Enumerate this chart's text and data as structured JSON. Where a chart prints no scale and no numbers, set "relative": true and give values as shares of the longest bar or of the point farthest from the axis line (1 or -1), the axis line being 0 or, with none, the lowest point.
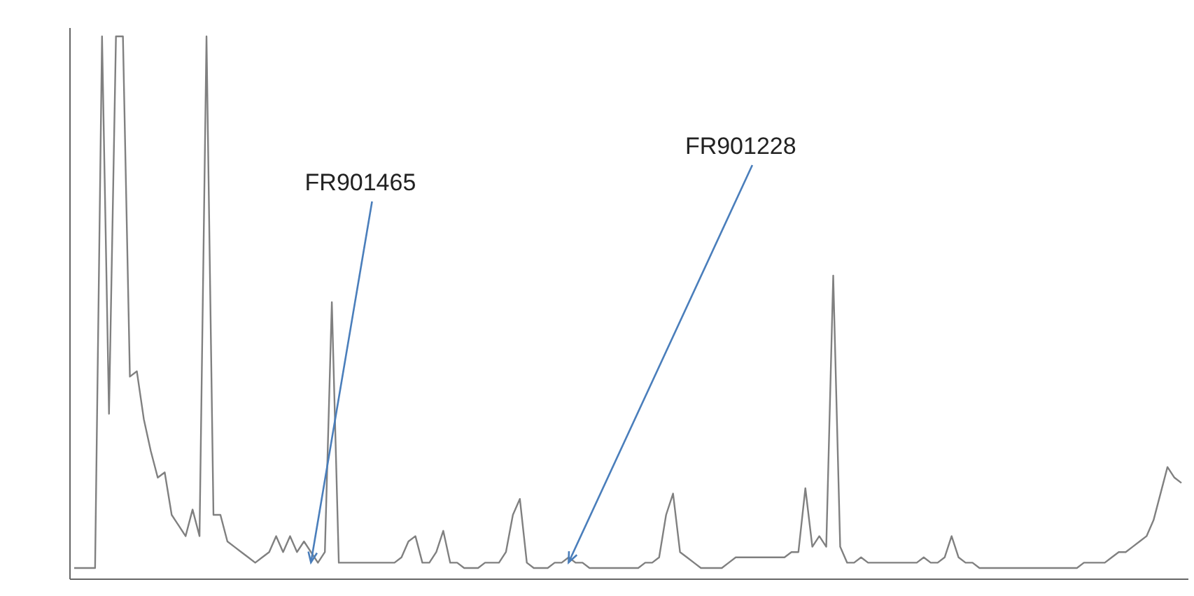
{
  "chart_data": {
    "type": "line",
    "relative": true,
    "categories": [
      null,
      null,
      null,
      null,
      null,
      null,
      null,
      null,
      null,
      null,
      null,
      null,
      null,
      null,
      null,
      null,
      null,
      null,
      null,
      null,
      null,
      null,
      null,
      null,
      null,
      null,
      null,
      null,
      null,
      null,
      null,
      null,
      null,
      null,
      null,
      null,
      null,
      null,
      null,
      null,
      null,
      null,
      null,
      null,
      null,
      null,
      null,
      null,
      null,
      null,
      null,
      null,
      null,
      null,
      null,
      null,
      null,
      null,
      null,
      null,
      null,
      null,
      null,
      null,
      null,
      null,
      null,
      null,
      null,
      null,
      null,
      null,
      null,
      null,
      null,
      null,
      null,
      null,
      null,
      null,
      null,
      null,
      null,
      null,
      null,
      null,
      null,
      null,
      null,
      null,
      null,
      null,
      null,
      null,
      null,
      null,
      null,
      null,
      null,
      null,
      null,
      null,
      null,
      null,
      null,
      null,
      null,
      null,
      null,
      null,
      null,
      null,
      null,
      null,
      null,
      null,
      null,
      null,
      null,
      null,
      null,
      null,
      null,
      null,
      null,
      null,
      null,
      null,
      null,
      null,
      null,
      null,
      null,
      null,
      null,
      null,
      null,
      null,
      null,
      null,
      null,
      null,
      null,
      null,
      null,
      null,
      null,
      null,
      null,
      null,
      null,
      null,
      null,
      null,
      null,
      null,
      null,
      null,
      null,
      null
    ],
    "series": [
      {
        "color": "#808080",
        "values": [
          0,
          0,
          0,
          0,
          1,
          0.29,
          1,
          1,
          0.36,
          0.37,
          0.28,
          0.22,
          0.17,
          0.18,
          0.1,
          0.08,
          0.06,
          0.11,
          0.06,
          1,
          0.1,
          0.1,
          0.05,
          0.04,
          0.03,
          0.02,
          0.01,
          0.02,
          0.03,
          0.06,
          0.03,
          0.06,
          0.03,
          0.05,
          0.03,
          0.01,
          0.03,
          0.5,
          0.01,
          0.01,
          0.01,
          0.01,
          0.01,
          0.01,
          0.01,
          0.01,
          0.01,
          0.02,
          0.05,
          0.06,
          0.01,
          0.01,
          0.03,
          0.07,
          0.01,
          0.01,
          0,
          0,
          0,
          0.01,
          0.01,
          0.01,
          0.03,
          0.1,
          0.13,
          0.01,
          0,
          0,
          0,
          0.01,
          0.01,
          0.02,
          0.01,
          0.01,
          0,
          0,
          0,
          0,
          0,
          0,
          0,
          0,
          0.01,
          0.01,
          0.02,
          0.1,
          0.14,
          0.03,
          0.02,
          0.01,
          0,
          0,
          0,
          0,
          0.01,
          0.02,
          0.02,
          0.02,
          0.02,
          0.02,
          0.02,
          0.02,
          0.02,
          0.03,
          0.03,
          0.15,
          0.04,
          0.06,
          0.04,
          0.55,
          0.04,
          0.01,
          0.01,
          0.02,
          0.01,
          0.01,
          0.01,
          0.01,
          0.01,
          0.01,
          0.01,
          0.01,
          0.02,
          0.01,
          0.01,
          0.02,
          0.06,
          0.02,
          0.01,
          0.01,
          0,
          0,
          0,
          0,
          0,
          0,
          0,
          0,
          0,
          0,
          0,
          0,
          0,
          0,
          0,
          0.01,
          0.01,
          0.01,
          0.01,
          0.02,
          0.03,
          0.03,
          0.04,
          0.05,
          0.06,
          0.09,
          0.14,
          0.19,
          0.17,
          0.16
        ]
      }
    ],
    "annotations": [
      "FR901465",
      "FR901228"
    ],
    "grid": false
  }
}
